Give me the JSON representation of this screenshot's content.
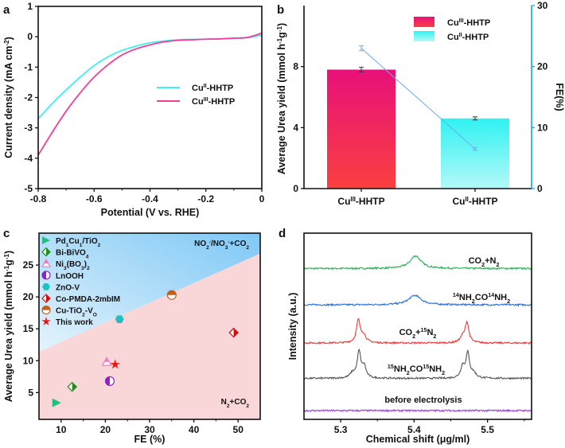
{
  "chart_data": [
    {
      "panel": "a",
      "type": "line",
      "xlabel": "Potential (V vs. RHE)",
      "ylabel": [
        [
          "Current density (mA cm",
          ""
        ],
        [
          "-2",
          "sup"
        ],
        [
          ")",
          ""
        ]
      ],
      "xlim": [
        -0.8,
        0
      ],
      "ylim": [
        -5,
        1
      ],
      "xticks": [
        -0.8,
        -0.6,
        -0.4,
        -0.2,
        0
      ],
      "xtick_labels": [
        "-0.8",
        "-0.6",
        "-0.4",
        "-0.2",
        "0"
      ],
      "yticks": [
        -5,
        -4,
        -3,
        -2,
        -1,
        0,
        1
      ],
      "ytick_labels": [
        "-5",
        "-4",
        "-3",
        "-2",
        "-1",
        "0",
        "1"
      ],
      "legend_position": "center-right",
      "series": [
        {
          "name": [
            [
              "Cu",
              ""
            ],
            [
              "II",
              "sup"
            ],
            [
              "-HHTP",
              ""
            ]
          ],
          "color": "#3ff0f0",
          "x": [
            -0.8,
            -0.75,
            -0.7,
            -0.65,
            -0.6,
            -0.55,
            -0.5,
            -0.45,
            -0.4,
            -0.35,
            -0.3,
            -0.25,
            -0.2,
            -0.15,
            -0.1,
            -0.05,
            0
          ],
          "y": [
            -2.7,
            -2.2,
            -1.75,
            -1.33,
            -0.95,
            -0.66,
            -0.45,
            -0.31,
            -0.2,
            -0.14,
            -0.1,
            -0.09,
            -0.08,
            -0.07,
            -0.05,
            -0.03,
            0.05
          ]
        },
        {
          "name": [
            [
              "Cu",
              ""
            ],
            [
              "III",
              "sup"
            ],
            [
              "-HHTP",
              ""
            ]
          ],
          "color": "#f0409a",
          "x": [
            -0.8,
            -0.75,
            -0.7,
            -0.65,
            -0.6,
            -0.55,
            -0.5,
            -0.45,
            -0.4,
            -0.35,
            -0.3,
            -0.25,
            -0.2,
            -0.15,
            -0.1,
            -0.05,
            0
          ],
          "y": [
            -3.9,
            -3.15,
            -2.45,
            -1.85,
            -1.33,
            -0.92,
            -0.6,
            -0.4,
            -0.27,
            -0.17,
            -0.12,
            -0.1,
            -0.08,
            -0.07,
            -0.05,
            -0.02,
            0.12
          ]
        }
      ]
    },
    {
      "panel": "b",
      "type": "bar",
      "ylabel": [
        [
          "Average Urea yield (mmol h",
          ""
        ],
        [
          "-1",
          "sup"
        ],
        [
          "g",
          ""
        ],
        [
          "-1",
          "sup"
        ],
        [
          ")",
          ""
        ]
      ],
      "y2label": "FE(%)",
      "ylim": [
        0,
        12
      ],
      "y2lim": [
        0,
        30
      ],
      "yticks": [
        0,
        4,
        8
      ],
      "ytick_labels": [
        "0",
        "4",
        "8"
      ],
      "y2ticks": [
        0,
        10,
        20,
        30
      ],
      "y2tick_labels": [
        "0",
        "10",
        "20",
        "30"
      ],
      "categories": [
        [
          [
            "Cu",
            ""
          ],
          [
            "III",
            "sup"
          ],
          [
            "-HHTP",
            ""
          ]
        ],
        [
          [
            "Cu",
            ""
          ],
          [
            "II",
            "sup"
          ],
          [
            "-HHTP",
            ""
          ]
        ]
      ],
      "values": [
        7.8,
        4.6
      ],
      "errors": [
        0.15,
        0.1
      ],
      "fe_values": [
        23,
        6.5
      ],
      "fe_errors": [
        0.4,
        0.2
      ],
      "legend_position": "top-right",
      "bar_colors": [
        [
          "#e8107a",
          "#fa4040"
        ],
        [
          "#30f2f2",
          "#b4f8f8"
        ]
      ],
      "fe_color": "#6aaaf0",
      "axis2_color": "#1aa0f0"
    },
    {
      "panel": "c",
      "type": "scatter",
      "xlabel": "FE (%)",
      "ylabel": [
        [
          "Average Urea yield (mmol h",
          ""
        ],
        [
          "-1",
          "sup"
        ],
        [
          "g",
          ""
        ],
        [
          "-1",
          "sup"
        ],
        [
          ")",
          ""
        ]
      ],
      "xlim": [
        5,
        55
      ],
      "ylim": [
        0.8,
        30
      ],
      "xticks": [
        10,
        20,
        30,
        40,
        50
      ],
      "xtick_labels": [
        "10",
        "20",
        "30",
        "40",
        "50"
      ],
      "yticks": [
        5,
        10,
        15,
        20,
        25
      ],
      "ytick_labels": [
        "5",
        "10",
        "15",
        "20",
        "25"
      ],
      "boundary_line": {
        "x": [
          5,
          55
        ],
        "y": [
          11.4,
          26.8
        ]
      },
      "region_labels": {
        "upper": [
          [
            "NO",
            ""
          ],
          [
            "2",
            "sub"
          ],
          [
            "-",
            "sup"
          ],
          [
            "/NO",
            ""
          ],
          [
            "3",
            "sub"
          ],
          [
            "-",
            "sup"
          ],
          [
            "+CO",
            ""
          ],
          [
            "2",
            "sub"
          ]
        ],
        "lower": [
          [
            "N",
            ""
          ],
          [
            "2",
            "sub"
          ],
          [
            "+CO",
            ""
          ],
          [
            "2",
            "sub"
          ]
        ]
      },
      "legend_position": "top-left",
      "points": [
        {
          "name": [
            [
              "Pd",
              ""
            ],
            [
              "1",
              "sub"
            ],
            [
              "Cu",
              ""
            ],
            [
              "1",
              "sub"
            ],
            [
              "/TiO",
              ""
            ],
            [
              "2",
              "sub"
            ]
          ],
          "x": 9,
          "y": 3.4,
          "marker": "triangle-right",
          "color": "#20c080"
        },
        {
          "name": [
            [
              "Bi-BiVO",
              ""
            ],
            [
              "4",
              "sub"
            ]
          ],
          "x": 12.5,
          "y": 5.9,
          "marker": "half-diamond",
          "color": "#1f8f1f"
        },
        {
          "name": [
            [
              "Ni",
              ""
            ],
            [
              "3",
              "sub"
            ],
            [
              "(BO",
              ""
            ],
            [
              "3",
              "sub"
            ],
            [
              ")",
              ""
            ],
            [
              "2",
              "sub"
            ]
          ],
          "x": 20.3,
          "y": 9.8,
          "marker": "half-triangle",
          "color": "#f07cc0"
        },
        {
          "name": [
            [
              "LnOOH",
              ""
            ]
          ],
          "x": 21,
          "y": 6.8,
          "marker": "half-circle",
          "color": "#9020d0"
        },
        {
          "name": [
            [
              "ZnO-V",
              ""
            ]
          ],
          "x": 23.2,
          "y": 16.5,
          "marker": "hexagon",
          "color": "#20c0c0"
        },
        {
          "name": [
            [
              "Co-PMDA-2mbIM",
              ""
            ]
          ],
          "x": 49,
          "y": 14.4,
          "marker": "half-diamond",
          "color": "#d01010"
        },
        {
          "name": [
            [
              "Cu-TiO",
              ""
            ],
            [
              "2",
              "sub"
            ],
            [
              "-V",
              ""
            ],
            [
              "O",
              "sub"
            ]
          ],
          "x": 35,
          "y": 20.3,
          "marker": "top-half-circle",
          "color": "#c06020"
        },
        {
          "name": [
            [
              "This work",
              ""
            ]
          ],
          "x": 22.2,
          "y": 9.4,
          "marker": "star",
          "color": "#ee1111"
        }
      ]
    },
    {
      "panel": "d",
      "type": "line",
      "xlabel": "Chemical shift (μg/ml)",
      "ylabel": "Intensity (a.u.)",
      "xlim": [
        5.25,
        5.56
      ],
      "ylim": [
        0,
        100
      ],
      "xticks": [
        5.3,
        5.4,
        5.5
      ],
      "xtick_labels": [
        "5.3",
        "5.4",
        "5.5"
      ],
      "series": [
        {
          "name": [
            [
              "CO",
              ""
            ],
            [
              "2",
              "sub"
            ],
            [
              "+N",
              ""
            ],
            [
              "2",
              "sub"
            ]
          ],
          "color": "#2fae5f",
          "offset": 81,
          "peaks": [
            {
              "center": 5.402,
              "amplitude": 6.8,
              "width": 0.009
            }
          ]
        },
        {
          "name": [
            [
              "14",
              "sup"
            ],
            [
              "NH",
              ""
            ],
            [
              "2",
              "sub"
            ],
            [
              "CO",
              ""
            ],
            [
              "14",
              "sup"
            ],
            [
              "NH",
              ""
            ],
            [
              "2",
              "sub"
            ]
          ],
          "color": "#2a6fe0",
          "offset": 61.5,
          "peaks": [
            {
              "center": 5.401,
              "amplitude": 5.1,
              "width": 0.01
            }
          ]
        },
        {
          "name": [
            [
              "CO",
              ""
            ],
            [
              "2",
              "sub"
            ],
            [
              "+",
              ""
            ],
            [
              "15",
              "sup"
            ],
            [
              "N",
              ""
            ],
            [
              "2",
              "sub"
            ]
          ],
          "color": "#ee3a3a",
          "offset": 41,
          "peaks": [
            {
              "center": 5.324,
              "amplitude": 12,
              "width": 0.003
            },
            {
              "center": 5.331,
              "amplitude": 4,
              "width": 0.004
            },
            {
              "center": 5.472,
              "amplitude": 10.7,
              "width": 0.003
            },
            {
              "center": 5.466,
              "amplitude": 3,
              "width": 0.004
            }
          ]
        },
        {
          "name": [
            [
              "15",
              "sup"
            ],
            [
              "NH",
              ""
            ],
            [
              "2",
              "sub"
            ],
            [
              "CO",
              ""
            ],
            [
              "15",
              "sup"
            ],
            [
              "NH",
              ""
            ],
            [
              "2",
              "sub"
            ]
          ],
          "color": "#555555",
          "offset": 22,
          "peaks": [
            {
              "center": 5.325,
              "amplitude": 14,
              "width": 0.003
            },
            {
              "center": 5.332,
              "amplitude": 6,
              "width": 0.003
            },
            {
              "center": 5.316,
              "amplitude": 2.5,
              "width": 0.004
            },
            {
              "center": 5.473,
              "amplitude": 13.2,
              "width": 0.003
            },
            {
              "center": 5.466,
              "amplitude": 6,
              "width": 0.003
            },
            {
              "center": 5.481,
              "amplitude": 2.5,
              "width": 0.004
            }
          ]
        },
        {
          "name": [
            [
              "before electrolysis",
              ""
            ]
          ],
          "color": "#9a3cf0",
          "offset": 4.7,
          "peaks": []
        }
      ]
    }
  ],
  "panel_letters": {
    "a": "a",
    "b": "b",
    "c": "c",
    "d": "d"
  }
}
